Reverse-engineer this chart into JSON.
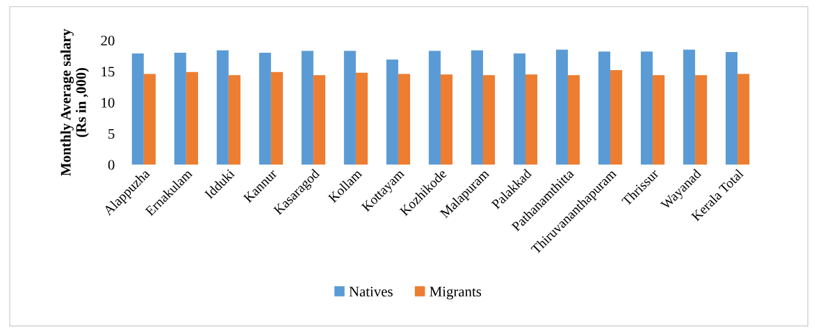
{
  "chart_data": {
    "type": "bar",
    "ylabel": "Monthly Average salary\n(Rs in ,000)",
    "categories": [
      "Alappuzha",
      "Ernakulam",
      "Idduki",
      "Kannur",
      "Kasaragod",
      "Kollam",
      "Kottayam",
      "Kozhikode",
      "Malapuram",
      "Palakkad",
      "Pathanamthitta",
      "Thiruvananthapuram",
      "Thrissur",
      "Wayanad",
      "Kerala Total"
    ],
    "series": [
      {
        "name": "Natives",
        "color": "#5b9bd5",
        "values": [
          17.9,
          18.0,
          18.4,
          18.0,
          18.3,
          18.3,
          16.9,
          18.3,
          18.4,
          17.9,
          18.5,
          18.2,
          18.2,
          18.5,
          18.1
        ]
      },
      {
        "name": "Migrants",
        "color": "#ed7d31",
        "values": [
          14.6,
          14.9,
          14.4,
          14.9,
          14.4,
          14.8,
          14.6,
          14.5,
          14.4,
          14.5,
          14.4,
          15.2,
          14.4,
          14.4,
          14.6
        ]
      }
    ],
    "ylim": [
      0,
      20
    ],
    "yticks": [
      0,
      5,
      10,
      15,
      20
    ],
    "grid": false,
    "legend": "bottom"
  }
}
